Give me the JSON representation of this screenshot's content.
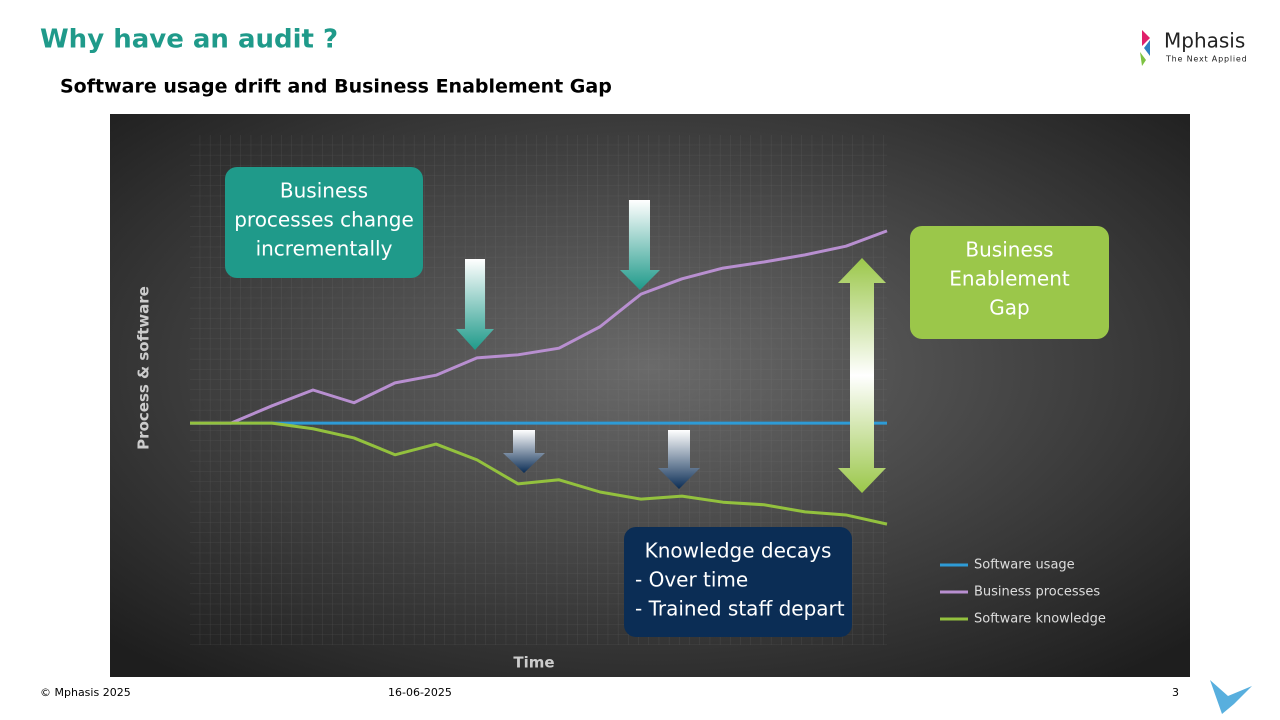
{
  "slide": {
    "title": "Why have an audit ?",
    "subtitle": "Software usage drift and Business Enablement Gap",
    "logo": "Mphasis",
    "logo_tagline": "The Next Applied",
    "footer_left": "© Mphasis 2025",
    "footer_date": "16-06-2025",
    "page_number": "3"
  },
  "chart_data": {
    "type": "line",
    "x_label": "Time",
    "y_label": "Process & software",
    "x": [
      0,
      1,
      2,
      3,
      4,
      5,
      6,
      7,
      8,
      9,
      10,
      11,
      12,
      13,
      14,
      15,
      16,
      17
    ],
    "xlim": [
      0,
      17
    ],
    "ylim": [
      0,
      100
    ],
    "series": [
      {
        "name": "Software usage",
        "color": "#2e9bd6",
        "values": [
          43.5,
          43.5,
          43.5,
          43.5,
          43.5,
          43.5,
          43.5,
          43.5,
          43.5,
          43.5,
          43.5,
          43.5,
          43.5,
          43.5,
          43.5,
          43.5,
          43.5,
          43.5
        ]
      },
      {
        "name": "Business processes",
        "color": "#b88fd0",
        "values": [
          43.5,
          43.5,
          46.9,
          50,
          47.5,
          51.4,
          52.9,
          56.3,
          56.9,
          58.2,
          62.4,
          68.8,
          71.8,
          73.9,
          75.1,
          76.5,
          78.2,
          81.2
        ]
      },
      {
        "name": "Software knowledge",
        "color": "#93c13e",
        "values": [
          43.5,
          43.5,
          43.5,
          42.4,
          40.6,
          37.3,
          39.4,
          36.3,
          31.6,
          32.4,
          30.0,
          28.6,
          29.2,
          28.0,
          27.5,
          26.1,
          25.5,
          23.7
        ]
      }
    ],
    "annotations": [
      {
        "lines": [
          "Business",
          "processes change",
          "incrementally"
        ],
        "color": "#1f9a8a"
      },
      {
        "lines": [
          "Business",
          "Enablement",
          "Gap"
        ],
        "color": "#9bc74a"
      },
      {
        "lines": [
          "Knowledge decays",
          "- Over time",
          "- Trained staff depart"
        ],
        "color": "#0b2d55"
      }
    ],
    "legend": "lower right"
  }
}
